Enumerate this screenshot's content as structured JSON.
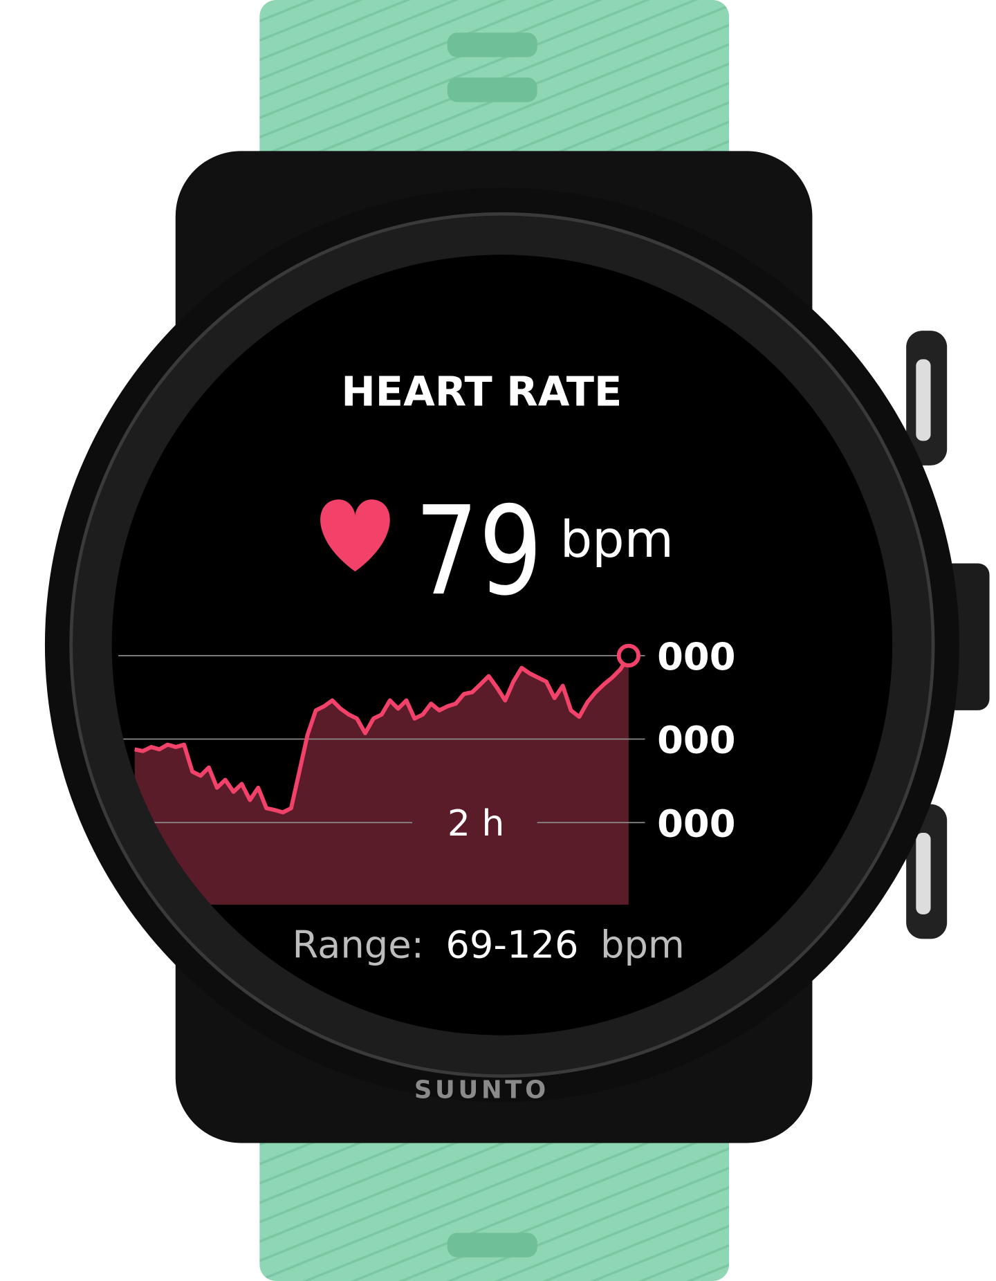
{
  "brand": "SUUNTO",
  "screen": {
    "title": "HEART RATE",
    "heart_rate": {
      "value": 79,
      "unit": "bpm"
    },
    "range": {
      "label": "Range:",
      "value": "69-126",
      "unit": "bpm"
    }
  },
  "chart_data": {
    "type": "area",
    "color": "#f2426a",
    "fill": "#5a1c28",
    "grid": true,
    "ylim": [
      41,
      126
    ],
    "yticks": [
      {
        "value": 69,
        "label": "000"
      },
      {
        "value": 97.5,
        "label": "000"
      },
      {
        "value": 126,
        "label": "000"
      }
    ],
    "annotation": "2 h",
    "values": [
      94.0,
      93.4,
      94.8,
      94.0,
      95.6,
      94.8,
      95.6,
      86.4,
      85.0,
      87.8,
      80.9,
      83.6,
      79.5,
      82.2,
      76.7,
      80.9,
      73.9,
      73.3,
      72.5,
      73.9,
      86.4,
      99.0,
      107.3,
      108.7,
      110.7,
      107.9,
      105.9,
      104.5,
      99.5,
      104.5,
      105.9,
      110.7,
      107.9,
      110.7,
      104.5,
      105.9,
      109.6,
      107.3,
      108.7,
      109.6,
      112.9,
      113.5,
      116.2,
      119.0,
      115.1,
      110.7,
      117.1,
      121.8,
      119.9,
      118.5,
      117.1,
      111.5,
      115.7,
      107.3,
      105.1,
      110.1,
      113.5,
      116.2,
      118.5,
      121.3,
      126.0
    ]
  }
}
